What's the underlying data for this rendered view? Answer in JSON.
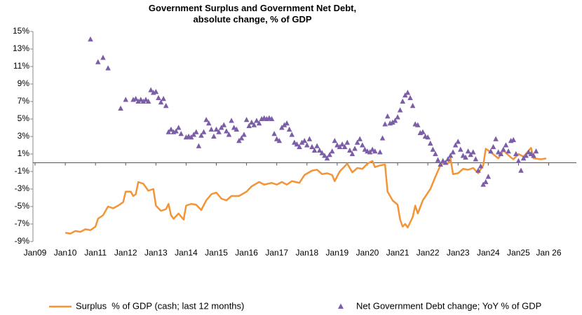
{
  "chart_data": {
    "type": "line-scatter",
    "title": "Government Surplus and Government Net Debt, absolute change, % of GDP",
    "xlim": [
      "2009-01",
      "2026-12"
    ],
    "xticks": [
      {
        "value": "2009-01",
        "label": "Jan09"
      },
      {
        "value": "2010-01",
        "label": "Jan10"
      },
      {
        "value": "2011-01",
        "label": "Jan11"
      },
      {
        "value": "2012-01",
        "label": "Jan12"
      },
      {
        "value": "2013-01",
        "label": "Jan13"
      },
      {
        "value": "2014-01",
        "label": "Jan14"
      },
      {
        "value": "2015-01",
        "label": "Jan15"
      },
      {
        "value": "2016-01",
        "label": "Jan16"
      },
      {
        "value": "2017-01",
        "label": "Jan17"
      },
      {
        "value": "2018-01",
        "label": "Jan18"
      },
      {
        "value": "2019-01",
        "label": "Jan19"
      },
      {
        "value": "2020-01",
        "label": "Jan20"
      },
      {
        "value": "2021-01",
        "label": "Jan21"
      },
      {
        "value": "2022-01",
        "label": "Jan22"
      },
      {
        "value": "2023-01",
        "label": "Jan23"
      },
      {
        "value": "2024-01",
        "label": "Jan24"
      },
      {
        "value": "2025-01",
        "label": "Jan25"
      },
      {
        "value": "2026-01",
        "label": "Jan 26"
      }
    ],
    "ylim": [
      -9,
      15
    ],
    "yticks": [
      {
        "value": -9,
        "label": "-9%"
      },
      {
        "value": -7,
        "label": "-7%"
      },
      {
        "value": -5,
        "label": "-5%"
      },
      {
        "value": -3,
        "label": "-3%"
      },
      {
        "value": -1,
        "label": "-1%"
      },
      {
        "value": 1,
        "label": "1%"
      },
      {
        "value": 3,
        "label": "3%"
      },
      {
        "value": 5,
        "label": "5%"
      },
      {
        "value": 7,
        "label": "7%"
      },
      {
        "value": 9,
        "label": "9%"
      },
      {
        "value": 11,
        "label": "11%"
      },
      {
        "value": 13,
        "label": "13%"
      },
      {
        "value": 15,
        "label": "15%"
      }
    ],
    "grid": false,
    "legend": "bottom",
    "series": [
      {
        "name": "Surplus  % of GDP (cash; last 12 months)",
        "color": "#f39436",
        "type": "line",
        "x": [
          "2010-01",
          "2010-03",
          "2010-05",
          "2010-07",
          "2010-09",
          "2010-11",
          "2011-01",
          "2011-02",
          "2011-04",
          "2011-06",
          "2011-08",
          "2011-10",
          "2011-12",
          "2012-01",
          "2012-03",
          "2012-04",
          "2012-05",
          "2012-06",
          "2012-08",
          "2012-10",
          "2012-12",
          "2013-01",
          "2013-03",
          "2013-05",
          "2013-06",
          "2013-07",
          "2013-08",
          "2013-10",
          "2013-12",
          "2014-01",
          "2014-03",
          "2014-05",
          "2014-07",
          "2014-09",
          "2014-11",
          "2015-01",
          "2015-03",
          "2015-05",
          "2015-07",
          "2015-10",
          "2016-01",
          "2016-03",
          "2016-06",
          "2016-08",
          "2016-11",
          "2017-01",
          "2017-03",
          "2017-05",
          "2017-07",
          "2017-10",
          "2017-12",
          "2018-03",
          "2018-05",
          "2018-07",
          "2018-09",
          "2018-11",
          "2018-12",
          "2019-02",
          "2019-05",
          "2019-07",
          "2019-09",
          "2019-11",
          "2020-01",
          "2020-03",
          "2020-04",
          "2020-06",
          "2020-08",
          "2020-09",
          "2020-11",
          "2021-01",
          "2021-02",
          "2021-03",
          "2021-04",
          "2021-05",
          "2021-07",
          "2021-08",
          "2021-09",
          "2021-11",
          "2022-02",
          "2022-04",
          "2022-06",
          "2022-07",
          "2022-09",
          "2022-10",
          "2022-11",
          "2023-01",
          "2023-03",
          "2023-05",
          "2023-07",
          "2023-09",
          "2023-11",
          "2023-12",
          "2024-02",
          "2024-05",
          "2024-07",
          "2024-10",
          "2024-11",
          "2025-01",
          "2025-03",
          "2025-06",
          "2025-07",
          "2025-10",
          "2025-12"
        ],
        "values": [
          -8.0,
          -8.1,
          -7.8,
          -7.9,
          -7.6,
          -7.7,
          -7.3,
          -6.4,
          -6.0,
          -5.0,
          -5.2,
          -4.9,
          -4.5,
          -3.3,
          -3.3,
          -3.8,
          -3.6,
          -2.2,
          -2.4,
          -3.2,
          -3.0,
          -4.9,
          -5.5,
          -5.3,
          -4.7,
          -6.0,
          -6.4,
          -5.8,
          -6.5,
          -4.9,
          -4.7,
          -4.8,
          -5.4,
          -4.3,
          -3.6,
          -3.4,
          -4.1,
          -4.3,
          -3.8,
          -3.8,
          -3.3,
          -2.7,
          -2.2,
          -2.5,
          -2.3,
          -2.5,
          -2.2,
          -2.5,
          -2.1,
          -2.3,
          -1.4,
          -0.9,
          -0.8,
          -1.3,
          -1.2,
          -1.4,
          -2.1,
          -1.0,
          -0.1,
          -1.1,
          -0.6,
          -0.7,
          -0.1,
          0.2,
          -0.5,
          -0.3,
          -0.2,
          -3.3,
          -4.3,
          -4.8,
          -6.5,
          -7.3,
          -7.0,
          -7.4,
          -6.2,
          -4.9,
          -5.8,
          -4.3,
          -3.0,
          -1.6,
          -0.3,
          0.0,
          -0.1,
          0.5,
          -1.3,
          -1.2,
          -0.7,
          -0.8,
          -0.6,
          -1.2,
          -0.3,
          1.6,
          1.2,
          0.5,
          1.4,
          0.6,
          0.4,
          1.0,
          0.7,
          1.7,
          0.5,
          0.4,
          0.5
        ]
      },
      {
        "name": "Net Government Debt change; YoY % of GDP",
        "color": "#7b5ea7",
        "type": "scatter",
        "x": [
          "2010-11",
          "2011-02",
          "2011-04",
          "2011-06",
          "2011-11",
          "2012-01",
          "2012-04",
          "2012-05",
          "2012-06",
          "2012-07",
          "2012-08",
          "2012-09",
          "2012-10",
          "2012-11",
          "2012-12",
          "2013-01",
          "2013-02",
          "2013-03",
          "2013-04",
          "2013-05",
          "2013-06",
          "2013-07",
          "2013-08",
          "2013-09",
          "2013-10",
          "2013-11",
          "2014-01",
          "2014-02",
          "2014-03",
          "2014-04",
          "2014-05",
          "2014-06",
          "2014-07",
          "2014-08",
          "2014-09",
          "2014-10",
          "2014-11",
          "2014-12",
          "2015-01",
          "2015-02",
          "2015-03",
          "2015-04",
          "2015-05",
          "2015-06",
          "2015-07",
          "2015-08",
          "2015-09",
          "2015-10",
          "2015-11",
          "2015-12",
          "2016-01",
          "2016-02",
          "2016-03",
          "2016-04",
          "2016-05",
          "2016-06",
          "2016-07",
          "2016-08",
          "2016-09",
          "2016-10",
          "2016-11",
          "2016-12",
          "2017-01",
          "2017-02",
          "2017-03",
          "2017-04",
          "2017-05",
          "2017-06",
          "2017-07",
          "2017-08",
          "2017-09",
          "2017-10",
          "2017-11",
          "2017-12",
          "2018-01",
          "2018-02",
          "2018-03",
          "2018-04",
          "2018-05",
          "2018-06",
          "2018-07",
          "2018-08",
          "2018-09",
          "2018-10",
          "2018-11",
          "2018-12",
          "2019-01",
          "2019-02",
          "2019-03",
          "2019-04",
          "2019-05",
          "2019-06",
          "2019-07",
          "2019-08",
          "2019-09",
          "2019-10",
          "2019-11",
          "2019-12",
          "2020-01",
          "2020-02",
          "2020-03",
          "2020-04",
          "2020-06",
          "2020-07",
          "2020-08",
          "2020-09",
          "2020-10",
          "2020-11",
          "2020-12",
          "2021-01",
          "2021-02",
          "2021-03",
          "2021-04",
          "2021-05",
          "2021-06",
          "2021-07",
          "2021-08",
          "2021-09",
          "2021-10",
          "2021-11",
          "2021-12",
          "2022-01",
          "2022-02",
          "2022-03",
          "2022-04",
          "2022-05",
          "2022-06",
          "2022-07",
          "2022-08",
          "2022-09",
          "2022-10",
          "2022-11",
          "2022-12",
          "2023-01",
          "2023-02",
          "2023-03",
          "2023-04",
          "2023-05",
          "2023-06",
          "2023-07",
          "2023-08",
          "2023-09",
          "2023-10",
          "2023-11",
          "2023-12",
          "2024-01",
          "2024-02",
          "2024-03",
          "2024-04",
          "2024-05",
          "2024-06",
          "2024-07",
          "2024-08",
          "2024-09",
          "2024-10",
          "2024-11",
          "2024-12",
          "2025-01",
          "2025-02",
          "2025-03",
          "2025-04",
          "2025-05",
          "2025-06",
          "2025-07",
          "2025-08"
        ],
        "values": [
          14.1,
          11.5,
          12.0,
          10.8,
          6.2,
          7.2,
          7.2,
          7.3,
          7.0,
          7.2,
          7.0,
          7.2,
          7.0,
          8.3,
          8.0,
          8.1,
          7.4,
          6.9,
          7.3,
          6.5,
          3.5,
          3.8,
          3.5,
          3.6,
          4.0,
          3.3,
          2.9,
          3.0,
          2.9,
          3.2,
          3.5,
          1.9,
          3.1,
          3.5,
          4.9,
          4.5,
          3.8,
          3.0,
          3.8,
          3.5,
          4.0,
          4.3,
          3.6,
          3.2,
          4.8,
          4.0,
          3.8,
          2.5,
          2.8,
          3.2,
          4.9,
          4.2,
          4.6,
          4.3,
          4.8,
          4.5,
          5.0,
          5.1,
          5.0,
          5.1,
          5.0,
          3.3,
          2.7,
          2.5,
          4.0,
          4.3,
          4.5,
          3.8,
          3.2,
          2.3,
          2.1,
          1.8,
          2.3,
          2.5,
          2.0,
          2.7,
          1.8,
          1.4,
          1.9,
          1.4,
          1.1,
          0.8,
          0.5,
          0.9,
          1.3,
          2.5,
          2.0,
          1.8,
          2.1,
          1.8,
          2.3,
          1.4,
          1.0,
          1.6,
          2.3,
          2.7,
          2.0,
          1.5,
          1.3,
          1.2,
          1.5,
          1.3,
          1.2,
          2.8,
          4.4,
          5.3,
          4.5,
          4.6,
          4.8,
          5.2,
          6.0,
          7.0,
          7.7,
          8.0,
          7.4,
          6.5,
          4.4,
          4.3,
          3.4,
          3.5,
          3.0,
          2.9,
          2.2,
          1.5,
          1.0,
          0.3,
          -0.2,
          0.2,
          0.0,
          0.4,
          0.8,
          1.2,
          2.0,
          2.4,
          1.5,
          0.8,
          0.6,
          1.3,
          0.9,
          1.2,
          0.4,
          -0.9,
          -0.4,
          -2.5,
          -2.2,
          -1.6,
          1.3,
          1.8,
          2.7,
          1.2,
          1.0,
          1.5,
          2.0,
          1.3,
          2.5,
          2.6,
          1.0,
          0.2,
          -0.9,
          0.5,
          0.8,
          1.2,
          1.0,
          0.8,
          1.3
        ]
      }
    ]
  }
}
